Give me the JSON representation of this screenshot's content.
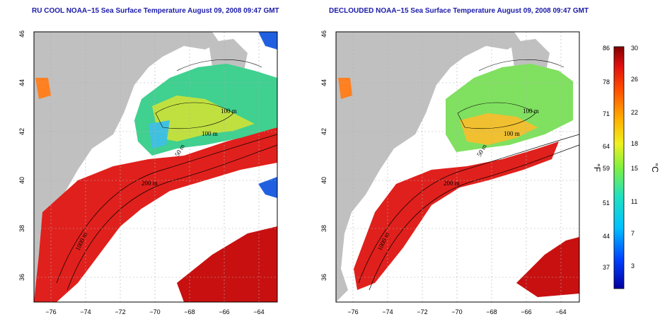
{
  "titles": {
    "left": "RU COOL NOAA−15 Sea Surface Temperature August 09, 2008 09:47 GMT",
    "right": "DECLOUDED NOAA−15 Sea Surface Temperature August 09, 2008 09:47 GMT"
  },
  "axes": {
    "x_ticks": [
      "−76",
      "−74",
      "−72",
      "−70",
      "−68",
      "−66",
      "−64"
    ],
    "y_ticks": [
      "46",
      "44",
      "42",
      "40",
      "38",
      "36"
    ]
  },
  "contour_labels": [
    "100 m",
    "100 m",
    "50 m",
    "200 m",
    "200 m",
    "1000 m"
  ],
  "colorbar": {
    "fahrenheit_ticks": [
      "86",
      "78",
      "71",
      "64",
      "59",
      "51",
      "44",
      "37"
    ],
    "celsius_ticks": [
      "30",
      "26",
      "22",
      "18",
      "15",
      "11",
      "7",
      "3"
    ],
    "fahrenheit_label": "°F",
    "celsius_label": "°C"
  },
  "colors": {
    "land": "#c0c0c0",
    "warm": "#e0201c",
    "hot": "#c01010",
    "mid": "#f0a020",
    "cool": "#40c8a0",
    "cold": "#2060e0",
    "title": "#1a1aa8"
  }
}
